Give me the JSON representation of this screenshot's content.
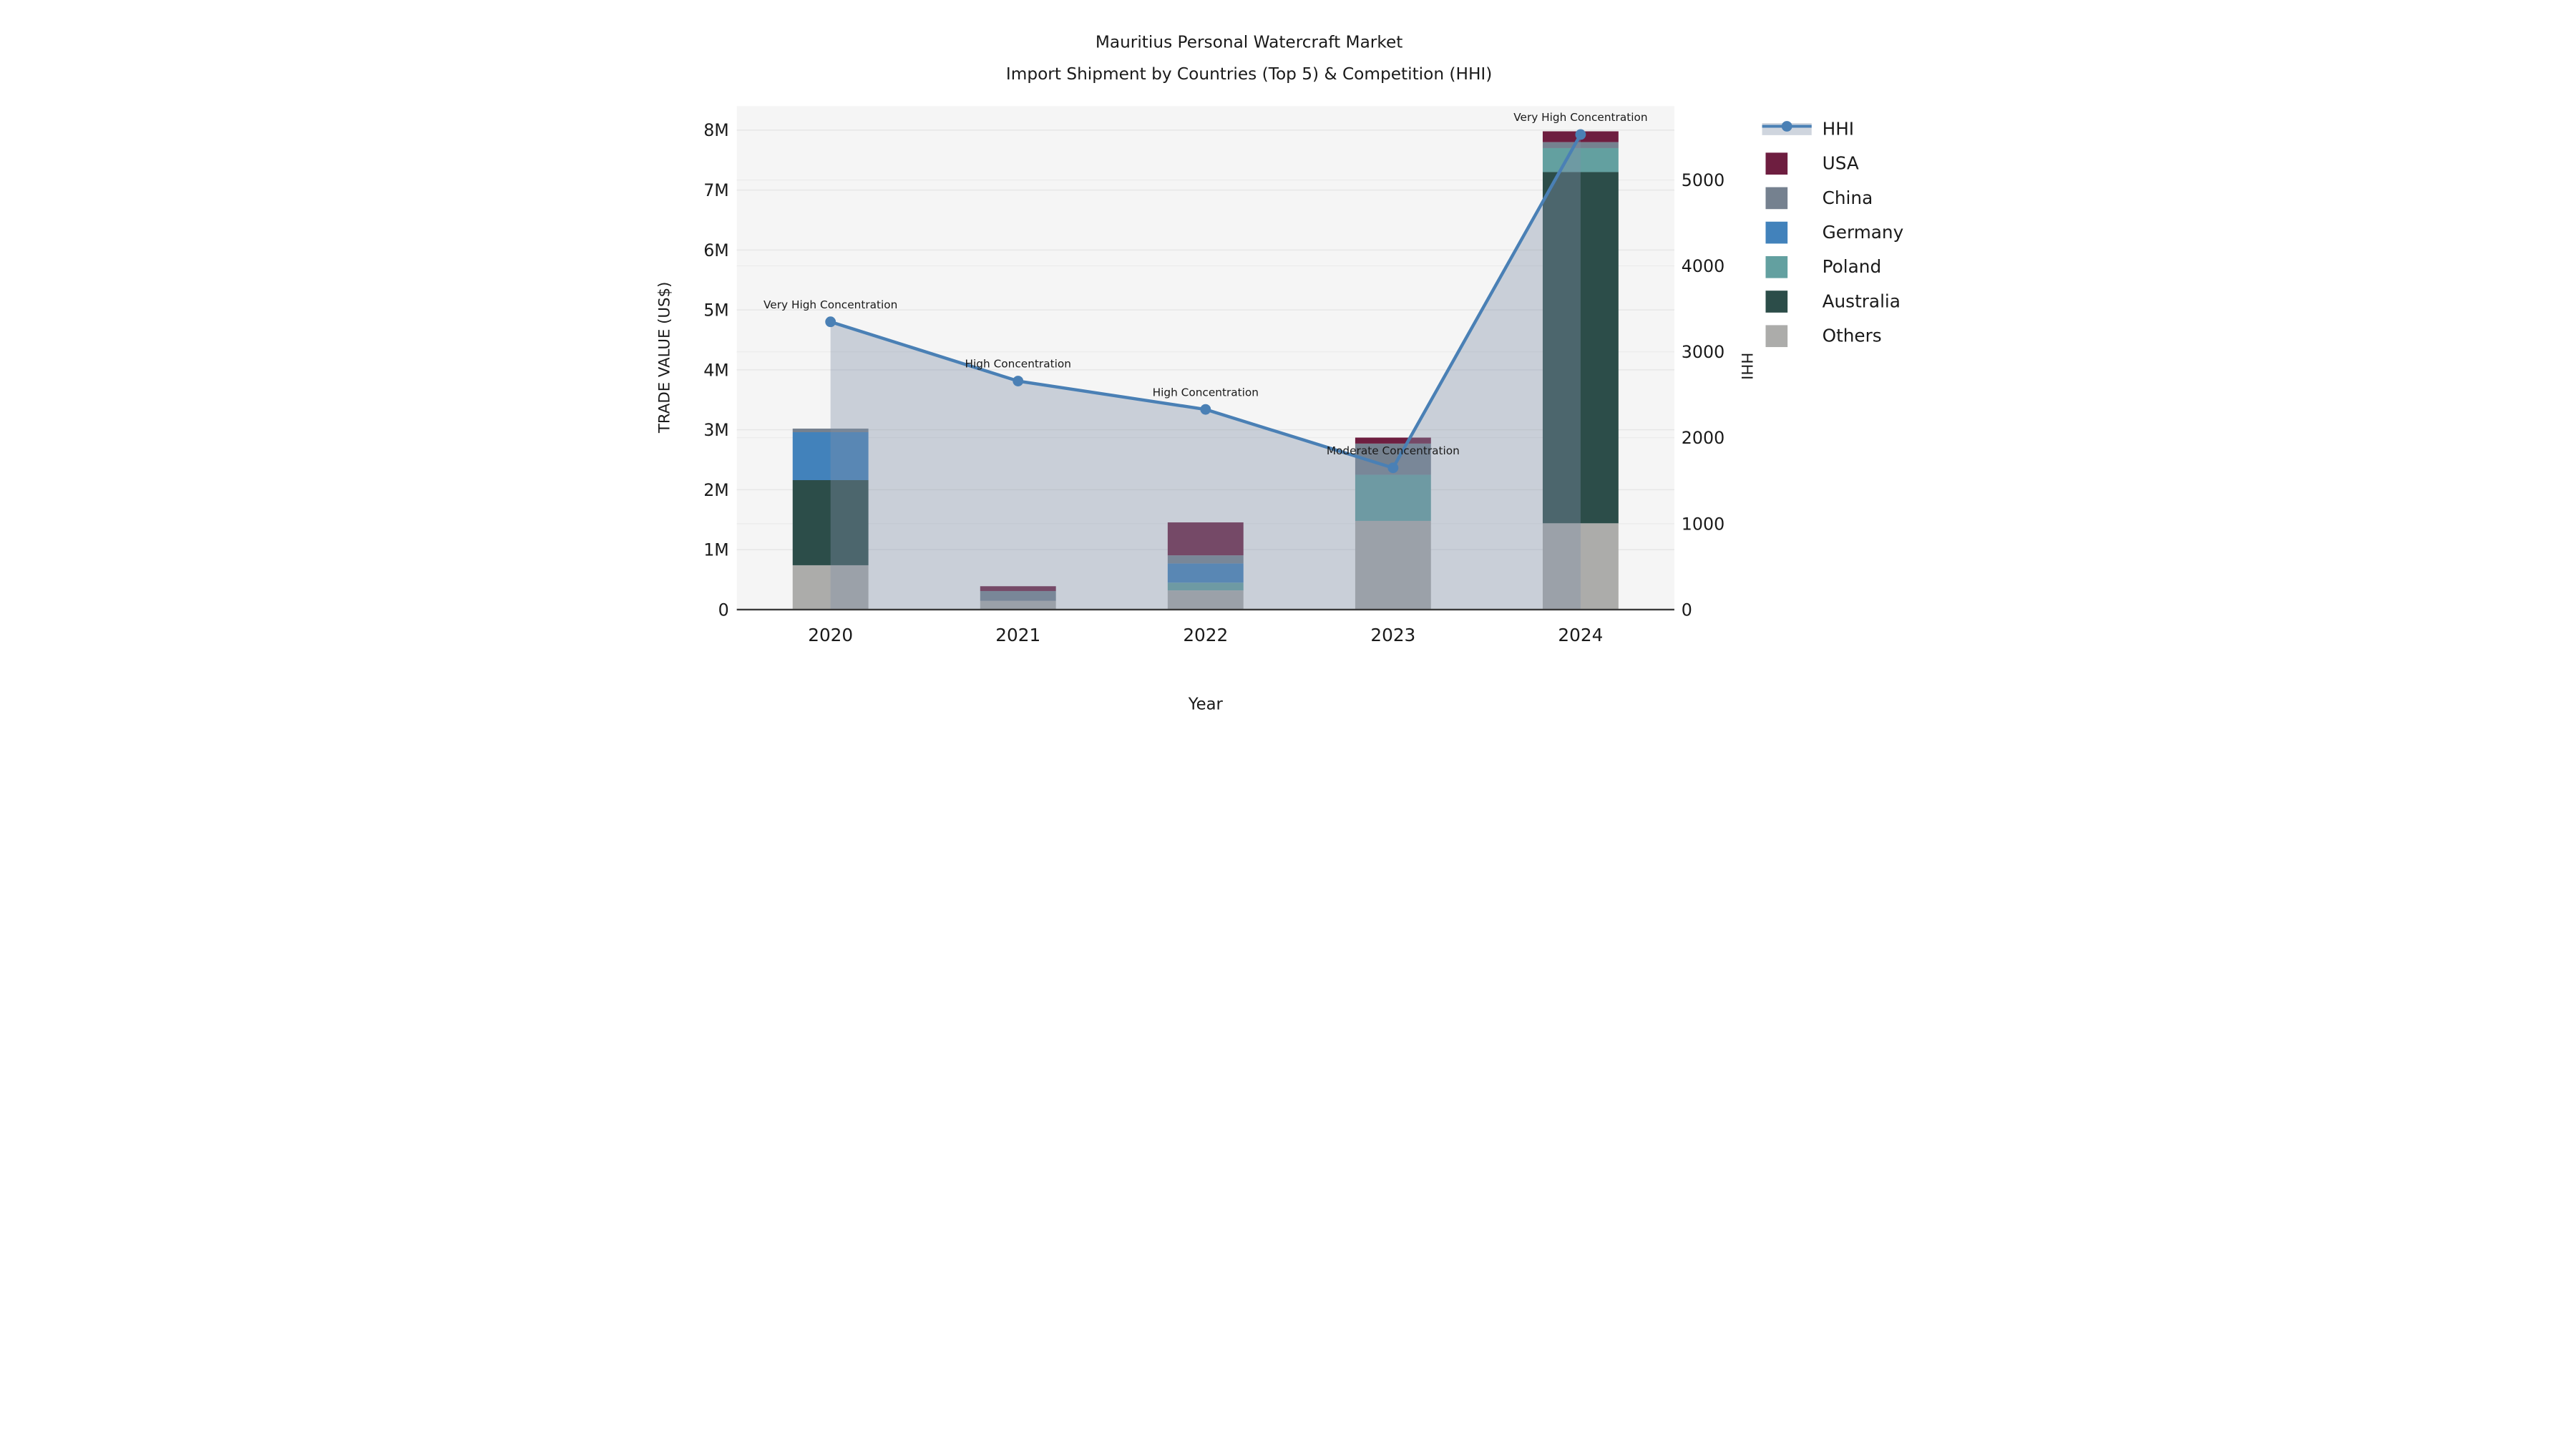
{
  "title": {
    "line1": "Mauritius Personal Watercraft Market",
    "line2": "Import Shipment by Countries (Top 5) & Competition (HHI)"
  },
  "chart_data": {
    "type": "bar",
    "subtype": "stacked-bars-with-line",
    "categories": [
      "2020",
      "2021",
      "2022",
      "2023",
      "2024"
    ],
    "xlabel": "Year",
    "ylabel_left": "TRADE VALUE (US$)",
    "ylabel_right": "HHI",
    "unit_left": "million US$",
    "stack_order_bottom_to_top": [
      "Others",
      "Australia",
      "Poland",
      "Germany",
      "China",
      "USA"
    ],
    "series": [
      {
        "name": "USA",
        "values": [
          0,
          0.08,
          0.55,
          0.1,
          0.18
        ]
      },
      {
        "name": "China",
        "values": [
          0.06,
          0.165,
          0.135,
          0.52,
          0.1
        ]
      },
      {
        "name": "Germany",
        "values": [
          0.8,
          0,
          0.32,
          0,
          0
        ]
      },
      {
        "name": "Poland",
        "values": [
          0,
          0,
          0.13,
          0.77,
          0.4
        ]
      },
      {
        "name": "Australia",
        "values": [
          1.42,
          0,
          0,
          0,
          5.86
        ]
      },
      {
        "name": "Others",
        "values": [
          0.74,
          0.145,
          0.32,
          1.48,
          1.44
        ]
      }
    ],
    "bar_totals": [
      3.02,
      0.39,
      1.455,
      2.87,
      7.98
    ],
    "hhi_line": {
      "name": "HHI",
      "values": [
        3350,
        2660,
        2330,
        1650,
        5530
      ],
      "annotations": [
        "Very High Concentration",
        "High Concentration",
        "High Concentration",
        "Moderate Concentration",
        "Very High Concentration"
      ]
    },
    "axis_left": {
      "tick_labels": [
        "0",
        "1M",
        "2M",
        "3M",
        "4M",
        "5M",
        "6M",
        "7M",
        "8M"
      ],
      "tick_values": [
        0,
        1,
        2,
        3,
        4,
        5,
        6,
        7,
        8
      ],
      "range": [
        0,
        8.4
      ]
    },
    "axis_right": {
      "tick_labels": [
        "0",
        "1000",
        "2000",
        "3000",
        "4000",
        "5000"
      ],
      "tick_values": [
        0,
        1000,
        2000,
        3000,
        4000,
        5000
      ],
      "range": [
        0,
        5860
      ]
    },
    "grid": "on",
    "legend_position": "right-outside",
    "legend": [
      {
        "label": "HHI",
        "type": "line-marker",
        "color": "#4a80b5"
      },
      {
        "label": "USA",
        "type": "swatch",
        "color": "#6e1e40"
      },
      {
        "label": "China",
        "type": "swatch",
        "color": "#75818f"
      },
      {
        "label": "Germany",
        "type": "swatch",
        "color": "#4282bb"
      },
      {
        "label": "Poland",
        "type": "swatch",
        "color": "#63a0a0"
      },
      {
        "label": "Australia",
        "type": "swatch",
        "color": "#2c4d49"
      },
      {
        "label": "Others",
        "type": "swatch",
        "color": "#acacaa"
      }
    ],
    "colors": {
      "USA": "#6e1e40",
      "China": "#75818f",
      "Germany": "#4282bb",
      "Poland": "#63a0a0",
      "Australia": "#2c4d49",
      "Others": "#acacaa",
      "hhi_line": "#4a80b5",
      "hhi_area_fill": "rgba(128,144,168,0.38)",
      "plot_background": "#f5f5f5",
      "gridline": "#e6e6e6",
      "axis_line": "#3a3a3a"
    }
  }
}
